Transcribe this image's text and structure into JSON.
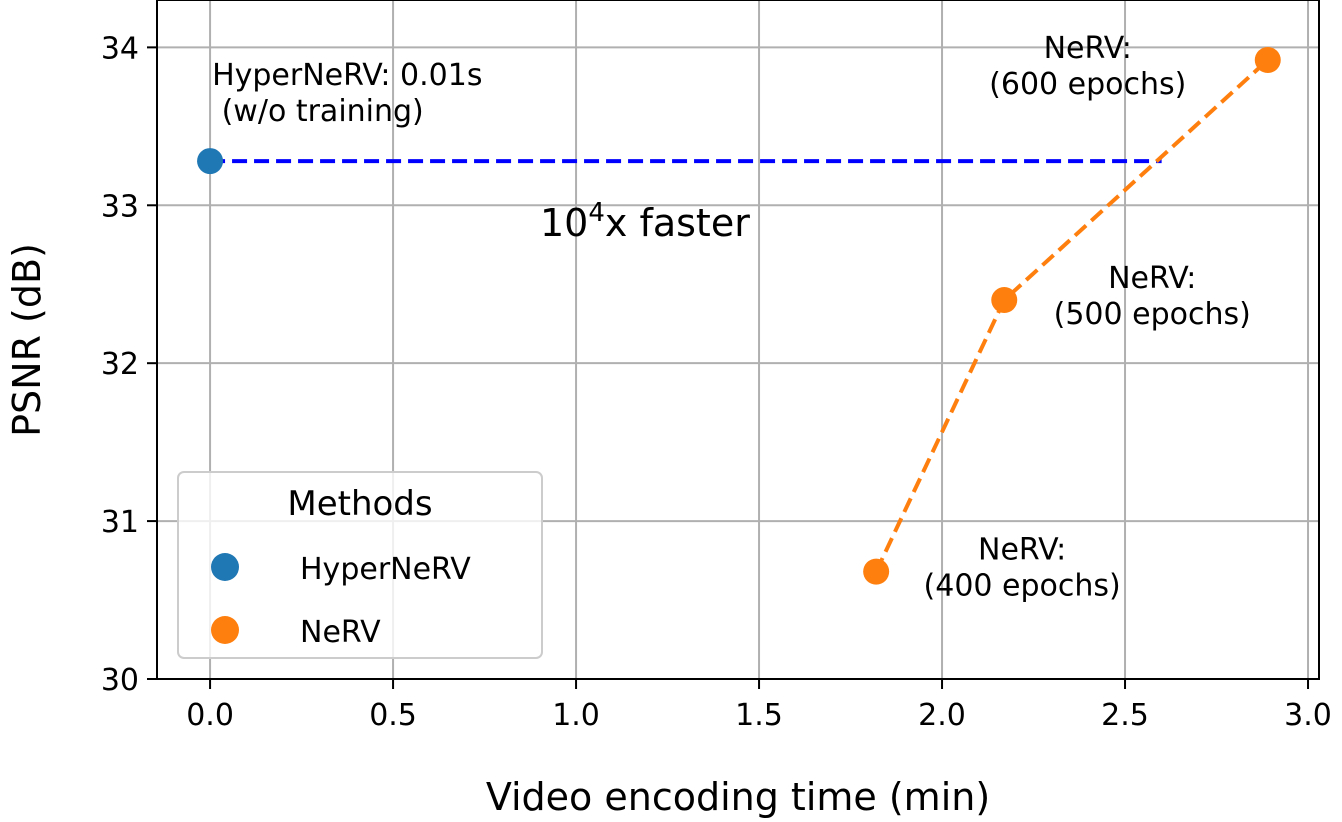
{
  "chart_data": {
    "type": "scatter",
    "xlabel": "Video encoding time (min)",
    "ylabel": "PSNR (dB)",
    "xlim": [
      -0.145,
      3.03
    ],
    "ylim": [
      30,
      34.3
    ],
    "grid": true,
    "x_ticks": [
      "0.0",
      "0.5",
      "1.0",
      "1.5",
      "2.0",
      "2.5",
      "3.0"
    ],
    "y_ticks": [
      "30",
      "31",
      "32",
      "33",
      "34"
    ],
    "x_tick_values": [
      0,
      0.5,
      1.0,
      1.5,
      2.0,
      2.5,
      3.0
    ],
    "y_tick_values": [
      30,
      31,
      32,
      33,
      34
    ],
    "series": [
      {
        "name": "HyperNeRV",
        "color": "#1f77b4",
        "x": [
          0.0
        ],
        "y": [
          33.28
        ],
        "line": "none"
      },
      {
        "name": "NeRV",
        "color": "#ff7f0e",
        "x": [
          1.82,
          2.17,
          2.89
        ],
        "y": [
          30.68,
          32.4,
          33.92
        ],
        "line": "dashed"
      }
    ],
    "reference_line": {
      "color": "#0000ff",
      "style": "dashed",
      "x_start": 0.0,
      "x_end": 2.6,
      "y": 33.28
    },
    "annotations": [
      {
        "lines": [
          "HyperNeRV: 0.01s",
          " (w/o training)"
        ],
        "x": 0.0,
        "y": 33.28
      },
      {
        "lines": [
          "NeRV:",
          "(600 epochs)"
        ],
        "x": 2.89,
        "y": 33.92
      },
      {
        "lines": [
          "NeRV:",
          "(500 epochs)"
        ],
        "x": 2.17,
        "y": 32.4
      },
      {
        "lines": [
          "NeRV:",
          "(400 epochs)"
        ],
        "x": 1.82,
        "y": 30.68
      }
    ],
    "speedup_text": {
      "base": "10",
      "sup": "4",
      "rest": "x faster"
    },
    "legend": {
      "title": "Methods",
      "location": "lower-left",
      "entries": [
        "HyperNeRV",
        "NeRV"
      ]
    }
  }
}
